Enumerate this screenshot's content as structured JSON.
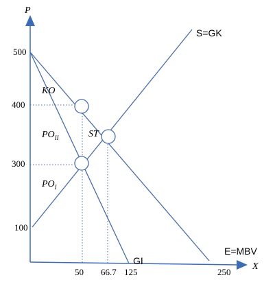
{
  "axes": {
    "y_label": "P",
    "x_label": "X",
    "y_ticks": [
      "500",
      "400",
      "300",
      "100"
    ],
    "x_ticks": [
      "50",
      "66.7",
      "125",
      "250"
    ]
  },
  "curves": {
    "supply": "S=GK",
    "demand": "E=MBV",
    "marginal_revenue": "GI"
  },
  "regions": {
    "ko": "KO",
    "st": "ST",
    "po2_main": "PO",
    "po2_sub": "II",
    "po1_main": "PO",
    "po1_sub": "I"
  },
  "colors": {
    "axis": "#3c6cb4",
    "line": "#4a6da8",
    "dotted": "#4a6da8"
  }
}
